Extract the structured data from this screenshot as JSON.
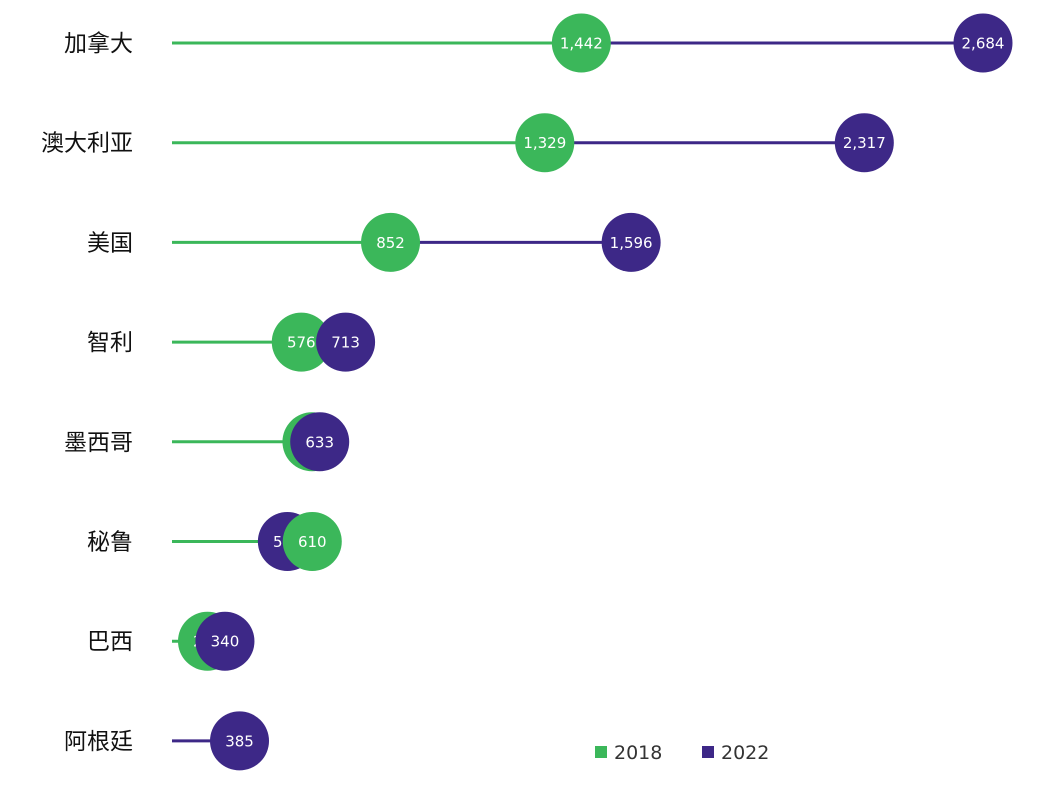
{
  "chart_data": {
    "type": "dumbbell",
    "title": "",
    "xlabel": "",
    "ylabel": "",
    "xlim": [
      0,
      2900
    ],
    "grid": false,
    "legend_position": "bottom-right",
    "categories": [
      "加拿大",
      "澳大利亚",
      "美国",
      "智利",
      "墨西哥",
      "秘鲁",
      "巴西",
      "阿根廷"
    ],
    "series": [
      {
        "name": "2018",
        "color": "#3bb75a",
        "values": [
          1442,
          1329,
          852,
          576,
          609,
          610,
          286,
          null
        ],
        "labels": [
          "1,442",
          "1,329",
          "852",
          "576",
          "609",
          "610",
          "286",
          ""
        ]
      },
      {
        "name": "2022",
        "color": "#3d2887",
        "values": [
          2684,
          2317,
          1596,
          713,
          633,
          533,
          340,
          385
        ],
        "labels": [
          "2,684",
          "2,317",
          "1,596",
          "713",
          "633",
          "533",
          "340",
          "385"
        ]
      }
    ]
  }
}
